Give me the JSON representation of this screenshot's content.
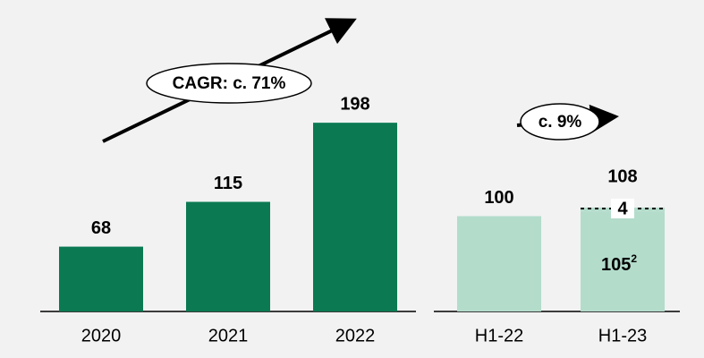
{
  "chart_data": [
    {
      "type": "bar",
      "categories": [
        "2020",
        "2021",
        "2022"
      ],
      "values": [
        68,
        115,
        198
      ],
      "color": "#0b7a53",
      "annotation": "CAGR: c. 71%"
    },
    {
      "type": "bar",
      "categories": [
        "H1-22",
        "H1-23"
      ],
      "values": [
        100,
        108
      ],
      "color": "#b3dccb",
      "annotation": "c. 9%",
      "breakdown": [
        {
          "value": 105,
          "footnote": "2"
        },
        {
          "value": 4
        }
      ]
    }
  ]
}
